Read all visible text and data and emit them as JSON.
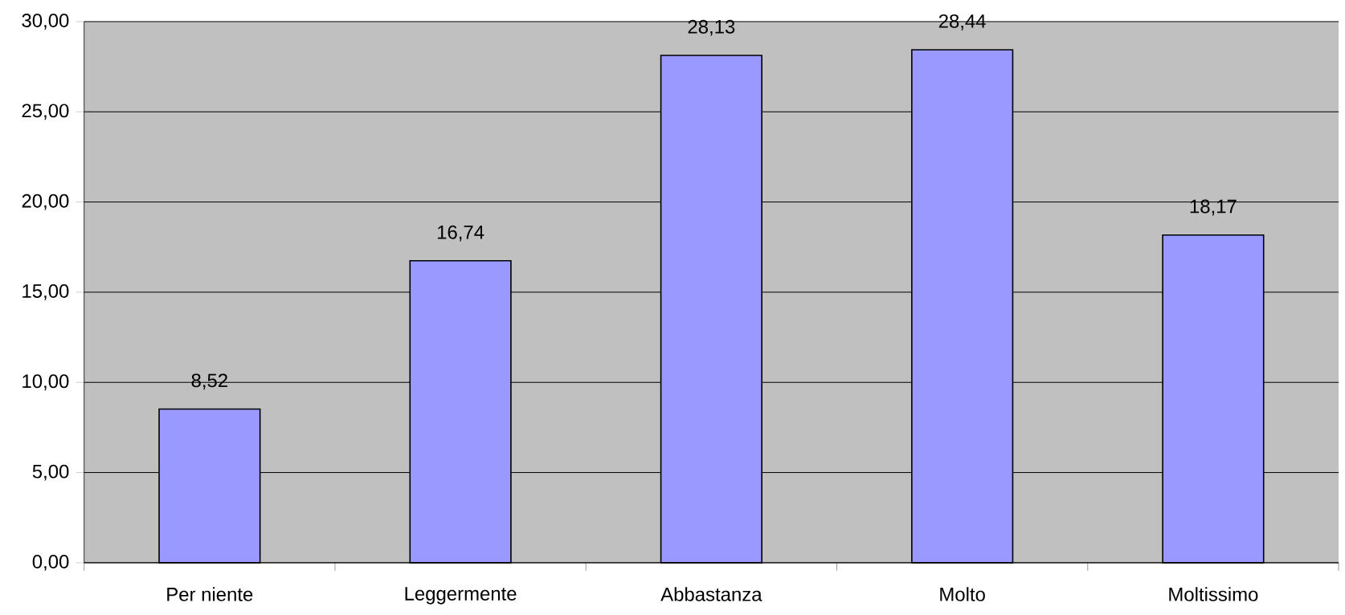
{
  "chart_data": {
    "type": "bar",
    "categories": [
      "Per niente",
      "Leggermente",
      "Abbastanza",
      "Molto",
      "Moltissimo"
    ],
    "values": [
      8.52,
      16.74,
      28.13,
      28.44,
      18.17
    ],
    "value_labels": [
      "8,52",
      "16,74",
      "28,13",
      "28,44",
      "18,17"
    ],
    "color": "#9999ff",
    "ylim": [
      0,
      30
    ],
    "yticks": [
      {
        "value": 0,
        "label": "0,00"
      },
      {
        "value": 5,
        "label": "5,00"
      },
      {
        "value": 10,
        "label": "10,00"
      },
      {
        "value": 15,
        "label": "15,00"
      },
      {
        "value": 20,
        "label": "20,00"
      },
      {
        "value": 25,
        "label": "25,00"
      },
      {
        "value": 30,
        "label": "30,00"
      }
    ],
    "grid": "y"
  }
}
